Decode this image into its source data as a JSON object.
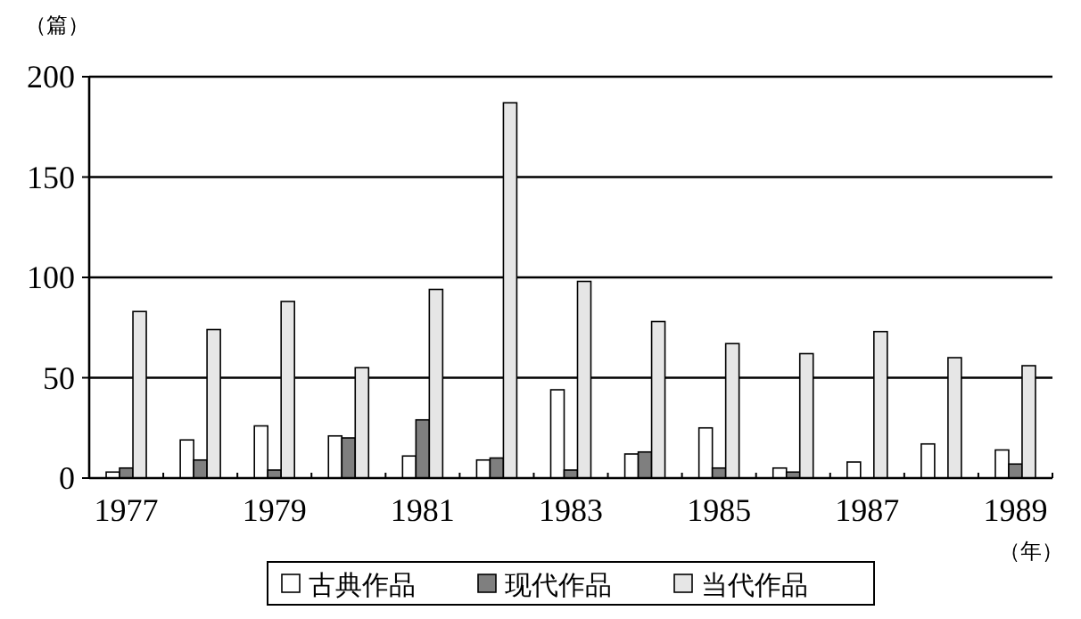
{
  "chart_data": {
    "type": "bar",
    "ylabel": "（篇）",
    "xlabel": "（年）",
    "categories": [
      "1977",
      null,
      "1979",
      null,
      "1981",
      null,
      "1983",
      null,
      "1985",
      null,
      "1987",
      null,
      "1989"
    ],
    "series": [
      {
        "name": "古典作品",
        "color": "#ffffff",
        "values": [
          3,
          19,
          26,
          21,
          11,
          9,
          44,
          12,
          25,
          5,
          8,
          17,
          14
        ]
      },
      {
        "name": "现代作品",
        "color": "#7f7f7f",
        "values": [
          5,
          9,
          4,
          20,
          29,
          10,
          4,
          13,
          5,
          3,
          0,
          0,
          7
        ]
      },
      {
        "name": "当代作品",
        "color": "#e6e6e6",
        "values": [
          83,
          74,
          88,
          55,
          94,
          187,
          98,
          78,
          67,
          62,
          73,
          60,
          56
        ]
      }
    ],
    "ylim": [
      0,
      200
    ],
    "yticks": [
      0,
      50,
      100,
      150,
      200
    ],
    "grid": "y",
    "legend": "bottom"
  }
}
